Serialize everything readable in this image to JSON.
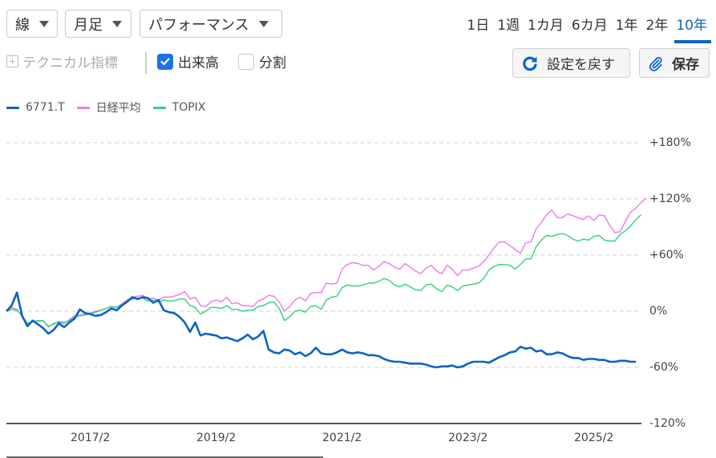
{
  "toolbar": {
    "chart_type": "線",
    "interval": "月足",
    "mode": "パフォーマンス",
    "ranges": [
      {
        "label": "1日",
        "active": false
      },
      {
        "label": "1週",
        "active": false
      },
      {
        "label": "1カ月",
        "active": false
      },
      {
        "label": "6カ月",
        "active": false
      },
      {
        "label": "1年",
        "active": false
      },
      {
        "label": "2年",
        "active": false
      },
      {
        "label": "10年",
        "active": true
      }
    ],
    "technical_label": "テクニカル指標",
    "volume_label": "出来高",
    "volume_checked": true,
    "split_label": "分割",
    "split_checked": false,
    "reset_label": "設定を戻す",
    "save_label": "保存"
  },
  "colors": {
    "accent": "#0b63c5",
    "checkbox": "#1a73e8",
    "grid": "#d9d9d9"
  },
  "chart_data": {
    "type": "line",
    "title": "",
    "xlabel": "",
    "ylabel": "",
    "ylim": [
      -120,
      180
    ],
    "yticks": [
      {
        "value": 180,
        "label": "+180%"
      },
      {
        "value": 120,
        "label": "+120%"
      },
      {
        "value": 60,
        "label": "+60%"
      },
      {
        "value": 0,
        "label": "0%"
      },
      {
        "value": -60,
        "label": "-60%"
      },
      {
        "value": -120,
        "label": "-120%"
      }
    ],
    "xticks": [
      "2017/2",
      "2019/2",
      "2021/2",
      "2023/2",
      "2025/2"
    ],
    "x_range": [
      "2015/10",
      "2025/10"
    ],
    "grid": true,
    "legend_position": "top-left",
    "series": [
      {
        "name": "6771.T",
        "color": "#0b63c5",
        "width": 2.6,
        "values": [
          0,
          6,
          20,
          -5,
          -16,
          -10,
          -14,
          -18,
          -24,
          -20,
          -13,
          -17,
          -12,
          -8,
          2,
          -2,
          -3,
          -5,
          -4,
          -1,
          3,
          1,
          6,
          10,
          15,
          13,
          15,
          14,
          9,
          12,
          1,
          -1,
          -2,
          -6,
          -12,
          -22,
          -12,
          -26,
          -24,
          -25,
          -26,
          -29,
          -28,
          -30,
          -32,
          -29,
          -25,
          -30,
          -27,
          -21,
          -41,
          -44,
          -45,
          -41,
          -42,
          -46,
          -44,
          -48,
          -45,
          -39,
          -45,
          -46,
          -46,
          -44,
          -41,
          -44,
          -45,
          -44,
          -45,
          -47,
          -47,
          -48,
          -51,
          -53,
          -54,
          -54,
          -55,
          -56,
          -56,
          -56,
          -57,
          -59,
          -60,
          -59,
          -59,
          -58,
          -60,
          -59,
          -56,
          -54,
          -54,
          -54,
          -55,
          -52,
          -49,
          -47,
          -44,
          -43,
          -38,
          -40,
          -39,
          -43,
          -42,
          -46,
          -46,
          -44,
          -45,
          -48,
          -50,
          -50,
          -52,
          -51,
          -51,
          -52,
          -52,
          -54,
          -54,
          -53,
          -53,
          -54,
          -54
        ]
      },
      {
        "name": "日経平均",
        "color": "#ee77ee",
        "width": 1.4,
        "values": [
          0,
          4,
          2,
          -6,
          -14,
          -10,
          -11,
          -10,
          -17,
          -13,
          -12,
          -13,
          -9,
          -5,
          -4,
          -3,
          -2,
          0,
          1,
          3,
          5,
          4,
          8,
          12,
          15,
          16,
          17,
          13,
          14,
          12,
          15,
          15,
          16,
          18,
          21,
          13,
          15,
          6,
          5,
          10,
          12,
          10,
          15,
          8,
          9,
          6,
          6,
          5,
          11,
          13,
          17,
          16,
          10,
          0,
          5,
          12,
          15,
          11,
          19,
          20,
          20,
          30,
          29,
          30,
          45,
          50,
          52,
          51,
          49,
          49,
          44,
          48,
          53,
          51,
          47,
          45,
          51,
          47,
          43,
          40,
          46,
          49,
          43,
          40,
          49,
          45,
          38,
          44,
          44,
          46,
          48,
          53,
          60,
          68,
          74,
          74,
          70,
          66,
          62,
          73,
          74,
          88,
          95,
          103,
          108,
          100,
          100,
          104,
          102,
          100,
          98,
          102,
          97,
          103,
          102,
          92,
          84,
          85,
          96,
          106,
          110,
          116,
          121
        ]
      },
      {
        "name": "TOPIX",
        "color": "#2ed47a",
        "width": 1.4,
        "values": [
          0,
          2,
          1,
          -5,
          -13,
          -11,
          -10,
          -10,
          -16,
          -14,
          -11,
          -12,
          -10,
          -6,
          -5,
          -4,
          -3,
          -1,
          1,
          3,
          5,
          4,
          7,
          11,
          13,
          14,
          14,
          11,
          12,
          10,
          12,
          11,
          11,
          13,
          13,
          6,
          4,
          -3,
          0,
          4,
          4,
          3,
          6,
          2,
          2,
          0,
          1,
          1,
          5,
          6,
          9,
          10,
          3,
          -10,
          -6,
          0,
          1,
          -1,
          5,
          6,
          2,
          12,
          15,
          16,
          25,
          28,
          27,
          27,
          28,
          30,
          30,
          32,
          35,
          33,
          28,
          26,
          29,
          26,
          23,
          22,
          28,
          29,
          24,
          21,
          28,
          26,
          22,
          27,
          28,
          29,
          30,
          35,
          44,
          48,
          50,
          50,
          49,
          45,
          50,
          56,
          56,
          69,
          76,
          81,
          80,
          82,
          83,
          81,
          77,
          75,
          77,
          76,
          80,
          81,
          76,
          75,
          75,
          82,
          86,
          91,
          98,
          103
        ]
      }
    ]
  }
}
